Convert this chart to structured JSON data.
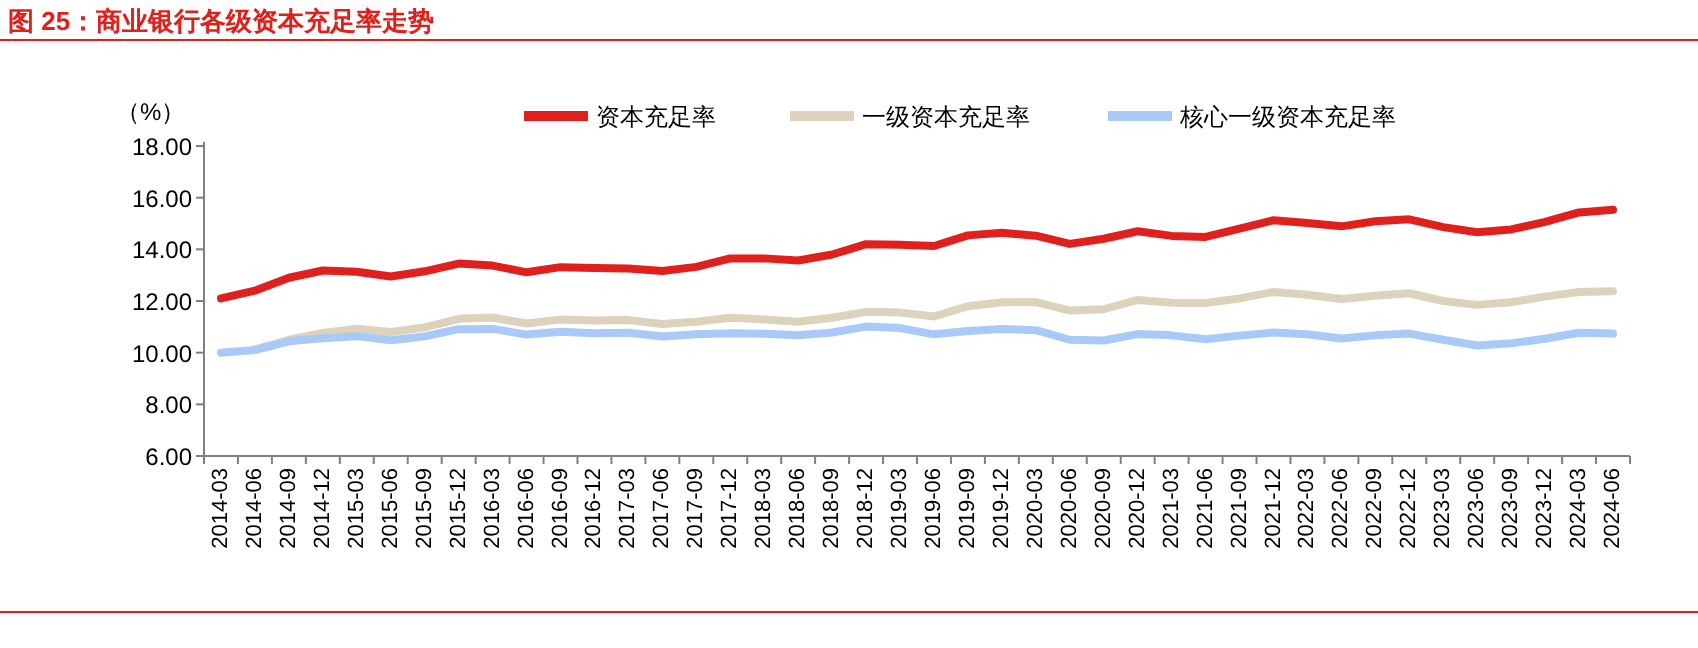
{
  "chart_data": {
    "type": "line",
    "title": "图 25：商业银行各级资本充足率走势",
    "ylabel": "（%）",
    "categories": [
      "2014-03",
      "2014-06",
      "2014-09",
      "2014-12",
      "2015-03",
      "2015-06",
      "2015-09",
      "2015-12",
      "2016-03",
      "2016-06",
      "2016-09",
      "2016-12",
      "2017-03",
      "2017-06",
      "2017-09",
      "2017-12",
      "2018-03",
      "2018-06",
      "2018-09",
      "2018-12",
      "2019-03",
      "2019-06",
      "2019-09",
      "2019-12",
      "2020-03",
      "2020-06",
      "2020-09",
      "2020-12",
      "2021-03",
      "2021-06",
      "2021-09",
      "2021-12",
      "2022-03",
      "2022-06",
      "2022-09",
      "2022-12",
      "2023-03",
      "2023-06",
      "2023-09",
      "2023-12",
      "2024-03",
      "2024-06"
    ],
    "series": [
      {
        "name": "资本充足率",
        "color": "#e0201c",
        "values": [
          12.1,
          12.4,
          12.9,
          13.18,
          13.13,
          12.95,
          13.15,
          13.45,
          13.37,
          13.11,
          13.31,
          13.28,
          13.26,
          13.16,
          13.32,
          13.65,
          13.65,
          13.57,
          13.8,
          14.2,
          14.18,
          14.13,
          14.54,
          14.64,
          14.53,
          14.21,
          14.41,
          14.7,
          14.52,
          14.48,
          14.8,
          15.13,
          15.02,
          14.89,
          15.09,
          15.16,
          14.86,
          14.66,
          14.77,
          15.06,
          15.43,
          15.53
        ]
      },
      {
        "name": "一级资本充足率",
        "color": "#ddd3bd",
        "values": [
          null,
          10.13,
          10.5,
          10.76,
          10.93,
          10.8,
          10.98,
          11.31,
          11.36,
          11.13,
          11.28,
          11.25,
          11.26,
          11.11,
          11.2,
          11.35,
          11.28,
          11.2,
          11.35,
          11.58,
          11.55,
          11.4,
          11.8,
          11.95,
          11.96,
          11.63,
          11.68,
          12.04,
          11.93,
          11.92,
          12.1,
          12.35,
          12.24,
          12.08,
          12.2,
          12.3,
          12.0,
          11.85,
          11.95,
          12.17,
          12.35,
          12.38
        ]
      },
      {
        "name": "核心一级资本充足率",
        "color": "#a9caf8",
        "values": [
          10.0,
          10.1,
          10.44,
          10.56,
          10.64,
          10.48,
          10.63,
          10.91,
          10.92,
          10.7,
          10.81,
          10.75,
          10.77,
          10.63,
          10.71,
          10.75,
          10.73,
          10.67,
          10.78,
          11.01,
          10.95,
          10.71,
          10.84,
          10.92,
          10.87,
          10.5,
          10.47,
          10.72,
          10.67,
          10.52,
          10.66,
          10.78,
          10.71,
          10.55,
          10.67,
          10.74,
          10.5,
          10.28,
          10.36,
          10.54,
          10.77,
          10.74
        ]
      }
    ],
    "ylim": [
      6,
      18
    ],
    "yticks": [
      {
        "value": 6,
        "label": "6.00"
      },
      {
        "value": 8,
        "label": "8.00"
      },
      {
        "value": 10,
        "label": "10.00"
      },
      {
        "value": 12,
        "label": "12.00"
      },
      {
        "value": 14,
        "label": "14.00"
      },
      {
        "value": 16,
        "label": "16.00"
      },
      {
        "value": 18,
        "label": "18.00"
      }
    ],
    "grid": false,
    "legend": "top",
    "marker": "none",
    "line_style": "solid"
  }
}
